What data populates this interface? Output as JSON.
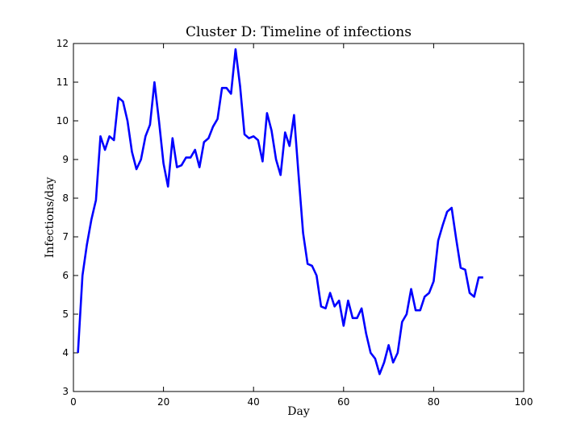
{
  "chart_data": {
    "type": "line",
    "title": "Cluster D: Timeline of infections",
    "xlabel": "Day",
    "ylabel": "Infections/day",
    "xlim": [
      0,
      100
    ],
    "ylim": [
      3,
      12
    ],
    "xticks": [
      0,
      20,
      40,
      60,
      80,
      100
    ],
    "yticks": [
      3,
      4,
      5,
      6,
      7,
      8,
      9,
      10,
      11,
      12
    ],
    "grid": false,
    "legend": "none",
    "series": [
      {
        "color": "#0000ff",
        "x": [
          1,
          2,
          3,
          4,
          5,
          6,
          7,
          8,
          9,
          10,
          11,
          12,
          13,
          14,
          15,
          16,
          17,
          18,
          19,
          20,
          21,
          22,
          23,
          24,
          25,
          26,
          27,
          28,
          29,
          30,
          31,
          32,
          33,
          34,
          35,
          36,
          37,
          38,
          39,
          40,
          41,
          42,
          43,
          44,
          45,
          46,
          47,
          48,
          49,
          50,
          51,
          52,
          53,
          54,
          55,
          56,
          57,
          58,
          59,
          60,
          61,
          62,
          63,
          64,
          65,
          66,
          67,
          68,
          69,
          70,
          71,
          72,
          73,
          74,
          75,
          76,
          77,
          78,
          79,
          80,
          81,
          82,
          83,
          84,
          85,
          86,
          87,
          88,
          89,
          90,
          91
        ],
        "y": [
          4.0,
          6.0,
          6.8,
          7.45,
          7.95,
          9.6,
          9.25,
          9.6,
          9.5,
          10.6,
          10.5,
          10.0,
          9.2,
          8.75,
          9.0,
          9.6,
          9.9,
          11.0,
          10.0,
          8.9,
          8.3,
          9.55,
          8.8,
          8.85,
          9.05,
          9.05,
          9.25,
          8.8,
          9.45,
          9.55,
          9.85,
          10.05,
          10.85,
          10.85,
          10.7,
          11.85,
          10.9,
          9.65,
          9.55,
          9.6,
          9.5,
          8.95,
          10.2,
          9.75,
          9.0,
          8.6,
          9.7,
          9.35,
          10.15,
          8.6,
          7.1,
          6.3,
          6.25,
          6.0,
          5.2,
          5.15,
          5.55,
          5.2,
          5.35,
          4.7,
          5.35,
          4.9,
          4.9,
          5.15,
          4.5,
          4.0,
          3.85,
          3.45,
          3.75,
          4.2,
          3.75,
          4.0,
          4.8,
          5.0,
          5.65,
          5.1,
          5.1,
          5.45,
          5.55,
          5.85,
          6.9,
          7.3,
          7.65,
          7.75,
          6.95,
          6.2,
          6.15,
          5.55,
          5.45,
          5.95,
          5.95
        ]
      }
    ]
  }
}
